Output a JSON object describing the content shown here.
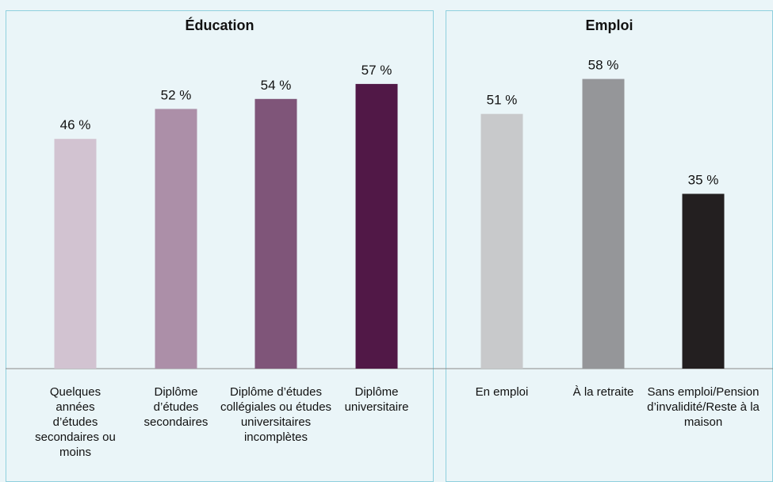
{
  "colors": {
    "background": "#eaf5f8",
    "panel_border": "#8fd0de",
    "baseline": "#8a8a8a"
  },
  "chart_data": [
    {
      "type": "bar",
      "title": "Éducation",
      "categories": [
        "Quelques années d’études secondaires ou moins",
        "Diplôme d’études secondaires",
        "Diplôme d’études collégiales ou études universitaires incomplètes",
        "Diplôme universitaire"
      ],
      "values": [
        46,
        52,
        54,
        57
      ],
      "value_labels": [
        "46 %",
        "52 %",
        "54 %",
        "57 %"
      ],
      "bar_colors": [
        "#d2c3d1",
        "#ac8fa8",
        "#7f5579",
        "#511847"
      ],
      "ylim": [
        0,
        60
      ],
      "grid": false
    },
    {
      "type": "bar",
      "title": "Emploi",
      "categories": [
        "En emploi",
        "À la retraite",
        "Sans emploi/Pension d’invalidité/Reste à la maison"
      ],
      "values": [
        51,
        58,
        35
      ],
      "value_labels": [
        "51 %",
        "58 %",
        "35 %"
      ],
      "bar_colors": [
        "#c8c9cb",
        "#959699",
        "#231f20"
      ],
      "ylim": [
        0,
        60
      ],
      "grid": false
    }
  ]
}
